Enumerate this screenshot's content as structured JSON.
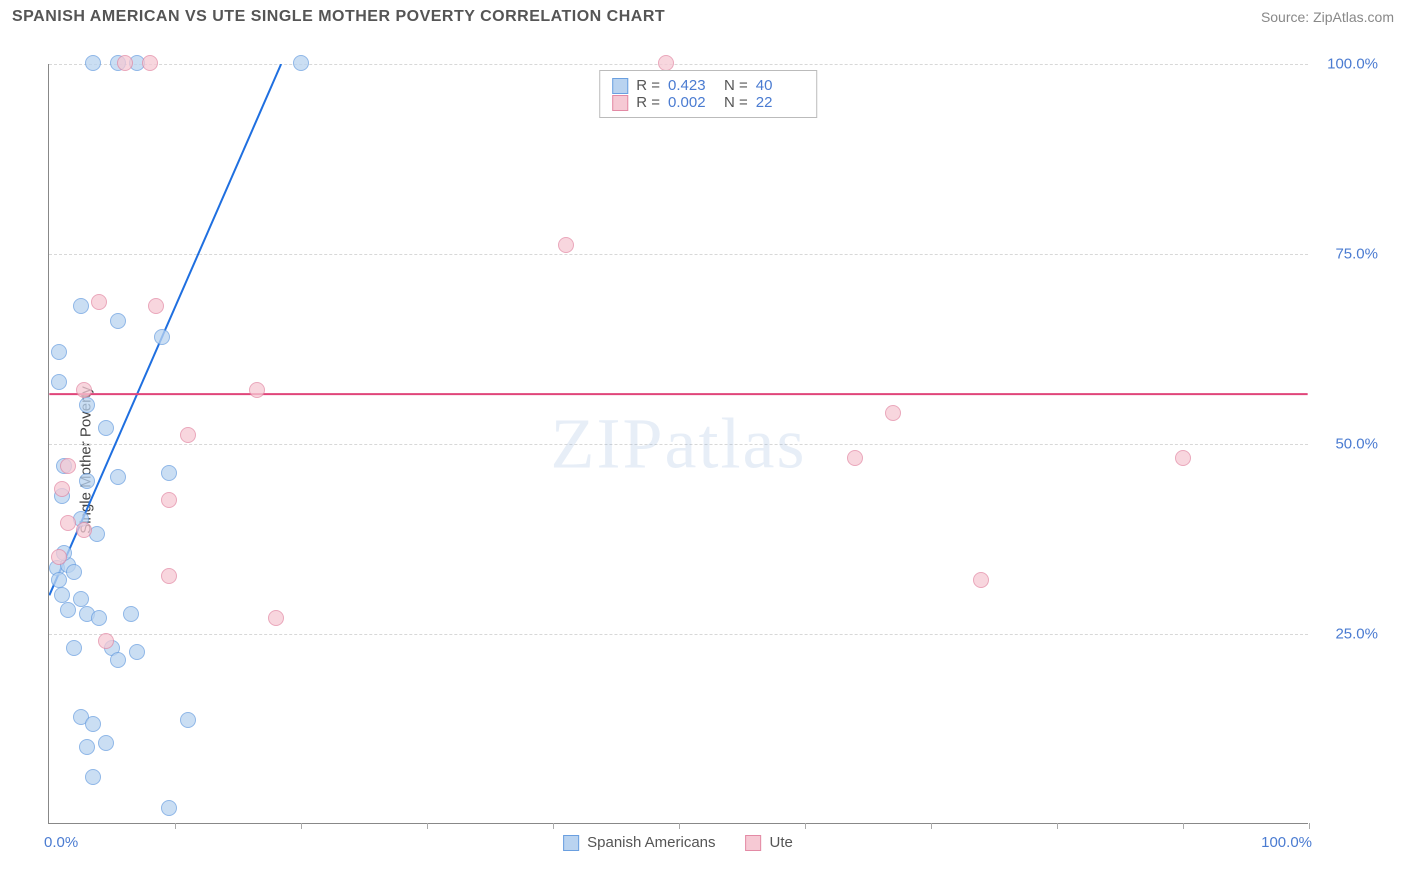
{
  "title": "SPANISH AMERICAN VS UTE SINGLE MOTHER POVERTY CORRELATION CHART",
  "source": "Source: ZipAtlas.com",
  "y_axis_label": "Single Mother Poverty",
  "watermark": "ZIPatlas",
  "chart": {
    "type": "scatter",
    "xlim": [
      0,
      100
    ],
    "ylim": [
      0,
      100
    ],
    "x_tick_labels": {
      "left": "0.0%",
      "right": "100.0%"
    },
    "y_ticks": [
      {
        "value": 25,
        "label": "25.0%"
      },
      {
        "value": 50,
        "label": "50.0%"
      },
      {
        "value": 75,
        "label": "75.0%"
      },
      {
        "value": 100,
        "label": "100.0%"
      }
    ],
    "x_minor_ticks": [
      10,
      20,
      30,
      40,
      50,
      60,
      70,
      80,
      90,
      100
    ],
    "grid_color": "#d8d8d8",
    "axis_color": "#888888",
    "background_color": "#ffffff",
    "marker_radius": 8,
    "marker_opacity": 0.75,
    "series": [
      {
        "name": "Spanish Americans",
        "fill_color": "#b9d3f0",
        "stroke_color": "#6a9fe0",
        "trend": {
          "slope": 3.8,
          "intercept": 30,
          "color": "#1f6fe0",
          "width": 2,
          "dash_after_x": 21
        },
        "R": "0.423",
        "N": "40",
        "points": [
          {
            "x": 3.5,
            "y": 100.0
          },
          {
            "x": 5.5,
            "y": 100.0
          },
          {
            "x": 7.0,
            "y": 100.0
          },
          {
            "x": 20.0,
            "y": 100.0
          },
          {
            "x": 2.5,
            "y": 68.0
          },
          {
            "x": 5.5,
            "y": 66.0
          },
          {
            "x": 9.0,
            "y": 64.0
          },
          {
            "x": 0.8,
            "y": 62.0
          },
          {
            "x": 0.8,
            "y": 58.0
          },
          {
            "x": 3.0,
            "y": 55.0
          },
          {
            "x": 4.5,
            "y": 52.0
          },
          {
            "x": 1.2,
            "y": 47.0
          },
          {
            "x": 3.0,
            "y": 45.0
          },
          {
            "x": 5.5,
            "y": 45.5
          },
          {
            "x": 9.5,
            "y": 46.0
          },
          {
            "x": 1.0,
            "y": 43.0
          },
          {
            "x": 2.5,
            "y": 40.0
          },
          {
            "x": 3.8,
            "y": 38.0
          },
          {
            "x": 0.6,
            "y": 33.5
          },
          {
            "x": 1.5,
            "y": 34.0
          },
          {
            "x": 0.8,
            "y": 32.0
          },
          {
            "x": 2.0,
            "y": 33.0
          },
          {
            "x": 1.0,
            "y": 30.0
          },
          {
            "x": 2.5,
            "y": 29.5
          },
          {
            "x": 1.5,
            "y": 28.0
          },
          {
            "x": 3.0,
            "y": 27.5
          },
          {
            "x": 4.0,
            "y": 27.0
          },
          {
            "x": 6.5,
            "y": 27.5
          },
          {
            "x": 2.0,
            "y": 23.0
          },
          {
            "x": 5.0,
            "y": 23.0
          },
          {
            "x": 5.5,
            "y": 21.5
          },
          {
            "x": 7.0,
            "y": 22.5
          },
          {
            "x": 2.5,
            "y": 14.0
          },
          {
            "x": 3.5,
            "y": 13.0
          },
          {
            "x": 11.0,
            "y": 13.5
          },
          {
            "x": 3.0,
            "y": 10.0
          },
          {
            "x": 4.5,
            "y": 10.5
          },
          {
            "x": 3.5,
            "y": 6.0
          },
          {
            "x": 9.5,
            "y": 2.0
          },
          {
            "x": 1.2,
            "y": 35.5
          }
        ]
      },
      {
        "name": "Ute",
        "fill_color": "#f6c9d4",
        "stroke_color": "#e38aa5",
        "trend": {
          "slope": 0.0,
          "intercept": 56.5,
          "color": "#e0457a",
          "width": 2,
          "dash_after_x": 200
        },
        "R": "0.002",
        "N": "22",
        "points": [
          {
            "x": 6.0,
            "y": 100.0
          },
          {
            "x": 8.0,
            "y": 100.0
          },
          {
            "x": 49.0,
            "y": 100.0
          },
          {
            "x": 41.0,
            "y": 76.0
          },
          {
            "x": 4.0,
            "y": 68.5
          },
          {
            "x": 8.5,
            "y": 68.0
          },
          {
            "x": 2.8,
            "y": 57.0
          },
          {
            "x": 16.5,
            "y": 57.0
          },
          {
            "x": 67.0,
            "y": 54.0
          },
          {
            "x": 11.0,
            "y": 51.0
          },
          {
            "x": 1.5,
            "y": 47.0
          },
          {
            "x": 64.0,
            "y": 48.0
          },
          {
            "x": 90.0,
            "y": 48.0
          },
          {
            "x": 1.0,
            "y": 44.0
          },
          {
            "x": 9.5,
            "y": 42.5
          },
          {
            "x": 1.5,
            "y": 39.5
          },
          {
            "x": 2.8,
            "y": 38.5
          },
          {
            "x": 0.8,
            "y": 35.0
          },
          {
            "x": 9.5,
            "y": 32.5
          },
          {
            "x": 74.0,
            "y": 32.0
          },
          {
            "x": 18.0,
            "y": 27.0
          },
          {
            "x": 4.5,
            "y": 24.0
          }
        ]
      }
    ]
  },
  "legend_bottom": [
    {
      "label": "Spanish Americans",
      "fill": "#b9d3f0",
      "stroke": "#6a9fe0"
    },
    {
      "label": "Ute",
      "fill": "#f6c9d4",
      "stroke": "#e38aa5"
    }
  ]
}
